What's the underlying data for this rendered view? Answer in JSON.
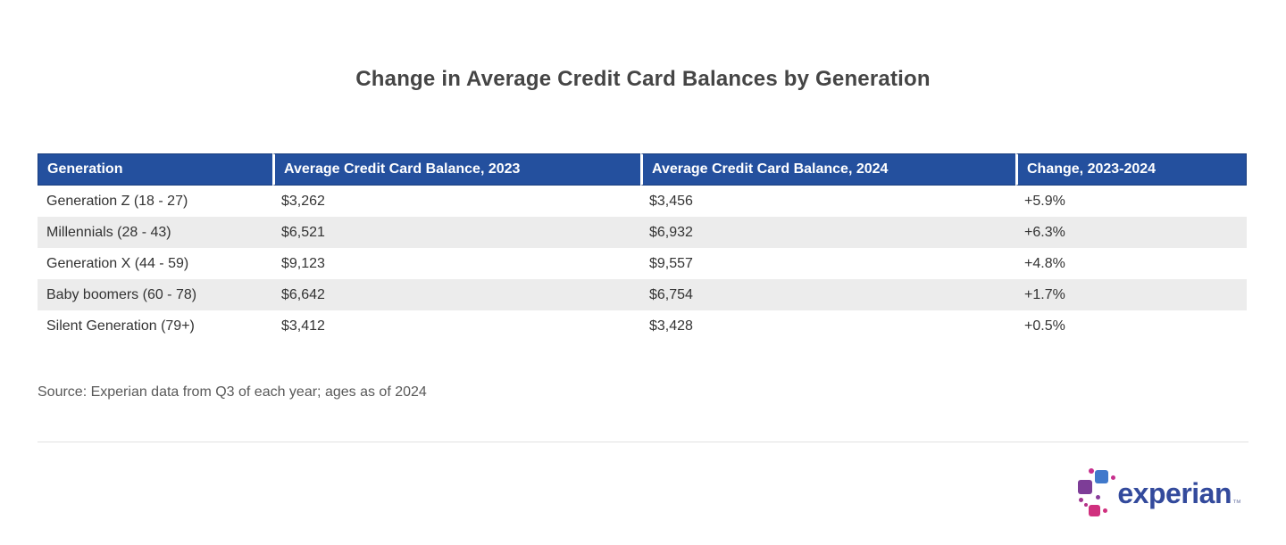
{
  "title": "Change in Average Credit Card Balances by Generation",
  "table": {
    "columns": [
      "Generation",
      "Average Credit Card Balance, 2023",
      "Average Credit Card Balance, 2024",
      "Change, 2023-2024"
    ],
    "rows": [
      [
        "Generation Z (18 - 27)",
        "$3,262",
        "$3,456",
        "+5.9%"
      ],
      [
        "Millennials (28 - 43)",
        "$6,521",
        "$6,932",
        "+6.3%"
      ],
      [
        "Generation X (44 - 59)",
        "$9,123",
        "$9,557",
        "+4.8%"
      ],
      [
        "Baby boomers (60 - 78)",
        "$6,642",
        "$6,754",
        "+1.7%"
      ],
      [
        "Silent Generation (79+)",
        "$3,412",
        "$3,428",
        "+0.5%"
      ]
    ]
  },
  "source": "Source: Experian data from Q3 of each year; ages as of 2024",
  "logo": {
    "text": "experian",
    "trademark": "™"
  },
  "colors": {
    "header_bg": "#24509e",
    "header_text": "#ffffff",
    "stripe_bg": "#ececec",
    "body_text": "#333333",
    "title_text": "#454545",
    "source_text": "#595959",
    "logo_text": "#334a9c",
    "logo_blue": "#4079cb",
    "logo_purple": "#7d3d97",
    "logo_magenta": "#d0307e"
  },
  "chart_data": {
    "type": "table",
    "title": "Change in Average Credit Card Balances by Generation",
    "columns": [
      "Generation",
      "Average Credit Card Balance, 2023",
      "Average Credit Card Balance, 2024",
      "Change, 2023-2024"
    ],
    "categories": [
      "Generation Z (18 - 27)",
      "Millennials (28 - 43)",
      "Generation X (44 - 59)",
      "Baby boomers (60 - 78)",
      "Silent Generation (79+)"
    ],
    "series": [
      {
        "name": "Average Credit Card Balance, 2023",
        "values": [
          3262,
          6521,
          9123,
          6642,
          3412
        ]
      },
      {
        "name": "Average Credit Card Balance, 2024",
        "values": [
          3456,
          6932,
          9557,
          6754,
          3428
        ]
      },
      {
        "name": "Change, 2023-2024 (%)",
        "values": [
          5.9,
          6.3,
          4.8,
          1.7,
          0.5
        ]
      }
    ],
    "source": "Source: Experian data from Q3 of each year; ages as of 2024"
  }
}
